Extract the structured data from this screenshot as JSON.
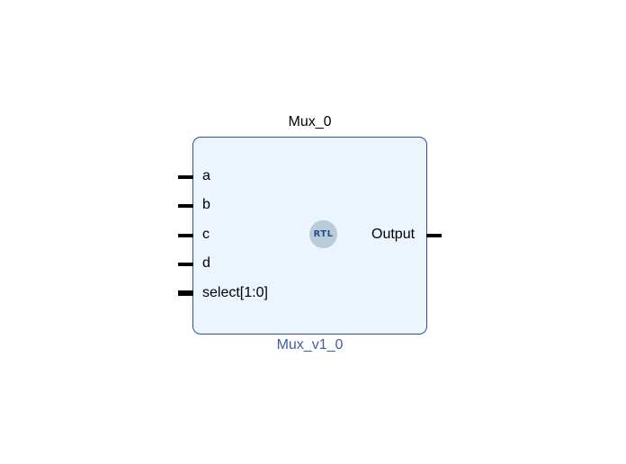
{
  "diagram": {
    "instance_name": "Mux_0",
    "module_name": "Mux_v1_0",
    "badge_text": "RTL",
    "input_ports": [
      {
        "name": "a",
        "bus": false
      },
      {
        "name": "b",
        "bus": false
      },
      {
        "name": "c",
        "bus": false
      },
      {
        "name": "d",
        "bus": false
      },
      {
        "name": "select[1:0]",
        "bus": true
      }
    ],
    "output_ports": [
      {
        "name": "Output",
        "bus": false
      }
    ],
    "colors": {
      "block_fill": "#ecf4fd",
      "block_border": "#2d4f9c",
      "module_text": "#3f5fa3",
      "badge_fill": "#b9ccd9",
      "badge_text": "#2b4d8a"
    }
  }
}
